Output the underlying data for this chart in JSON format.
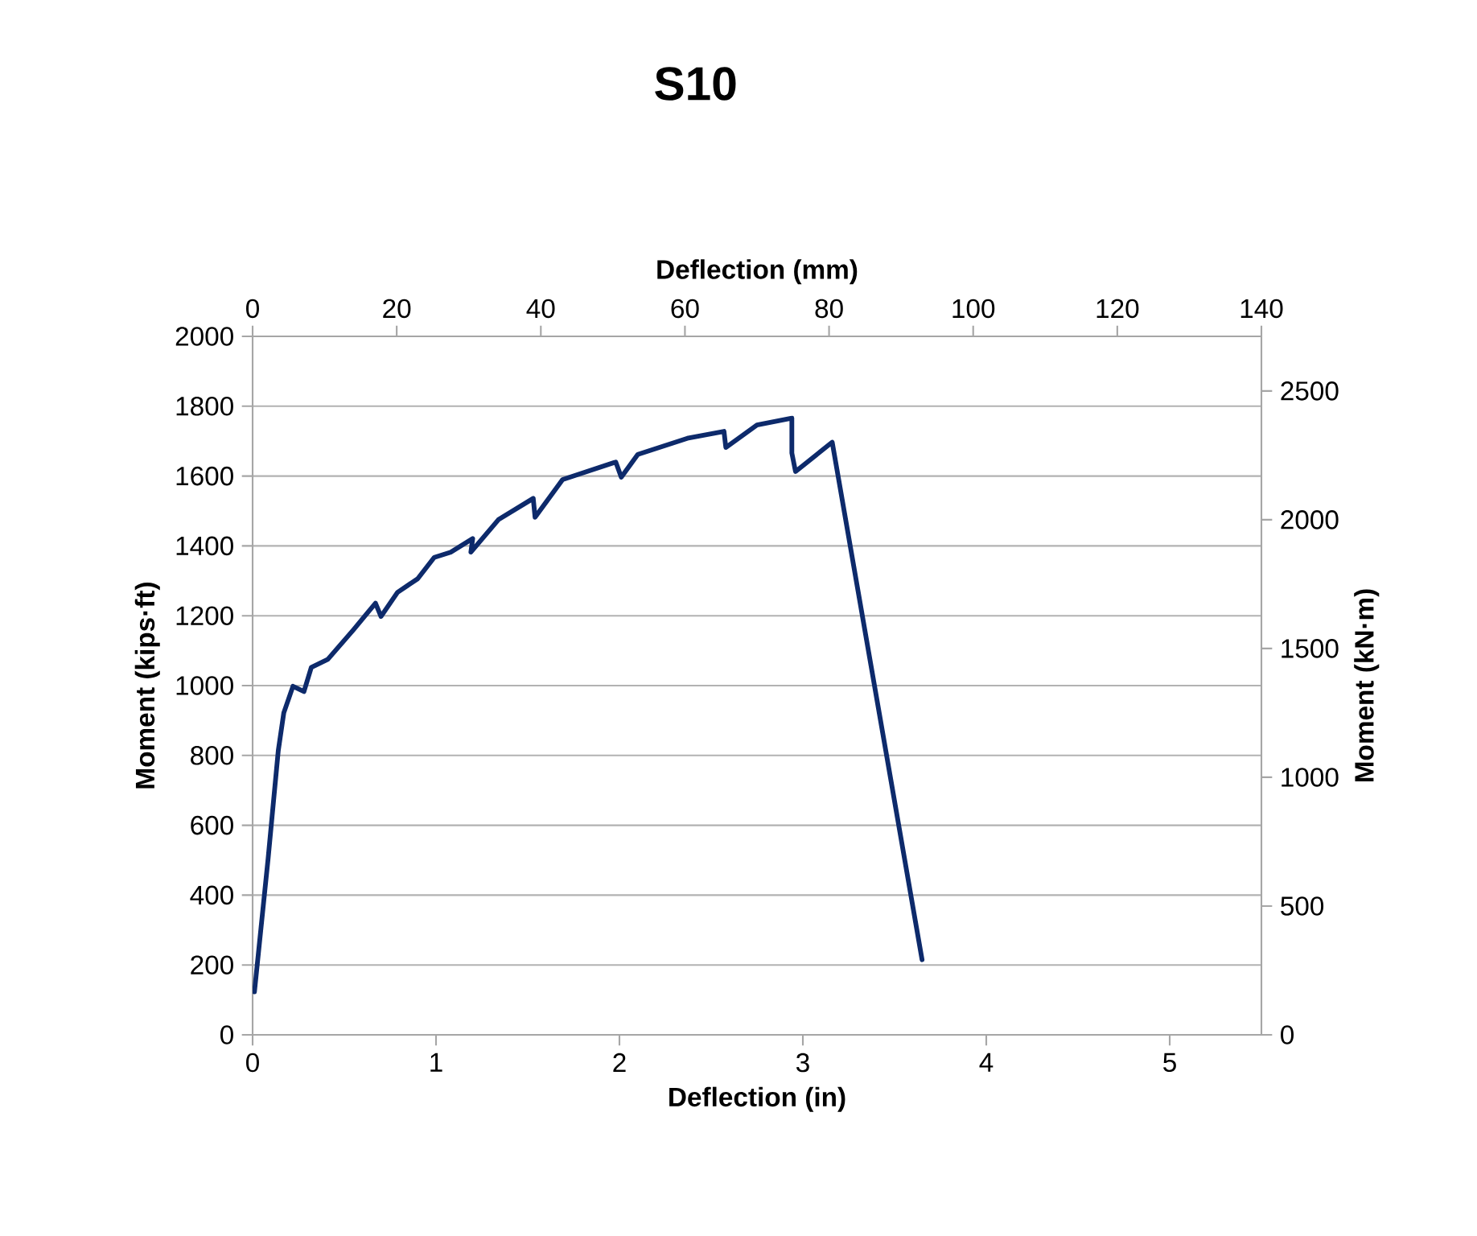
{
  "chart_data": {
    "type": "line",
    "title": "S10",
    "xlabel": "Deflection (in)",
    "ylabel": "Moment (kips·ft)",
    "x2label": "Deflection (mm)",
    "y2label": "Moment (kN·m)",
    "xlim": [
      0,
      5.5
    ],
    "xticks": [
      0,
      1,
      2,
      3,
      4,
      5
    ],
    "ylim": [
      0,
      2000
    ],
    "yticks": [
      0,
      200,
      400,
      600,
      800,
      1000,
      1200,
      1400,
      1600,
      1800,
      2000
    ],
    "x2lim": [
      0,
      140
    ],
    "x2ticks": [
      0,
      20,
      40,
      60,
      80,
      100,
      120,
      140
    ],
    "y2lim": [
      0,
      2712
    ],
    "y2ticks": [
      0,
      500,
      1000,
      1500,
      2000,
      2500
    ],
    "grid": "y",
    "series": [
      {
        "color": "#0d2a6b",
        "x": [
          0.01,
          0.085,
          0.14,
          0.17,
          0.22,
          0.28,
          0.32,
          0.41,
          0.55,
          0.67,
          0.7,
          0.79,
          0.9,
          0.99,
          1.08,
          1.2,
          1.19,
          1.34,
          1.53,
          1.54,
          1.69,
          1.98,
          2.01,
          2.1,
          2.37,
          2.57,
          2.58,
          2.75,
          2.94,
          2.94,
          2.96,
          3.16,
          3.65
        ],
        "values": [
          123,
          507,
          814,
          922,
          998,
          983,
          1052,
          1075,
          1160,
          1236,
          1198,
          1267,
          1306,
          1367,
          1382,
          1421,
          1382,
          1475,
          1536,
          1482,
          1590,
          1640,
          1597,
          1662,
          1708,
          1728,
          1682,
          1746,
          1766,
          1666,
          1613,
          1697,
          215
        ]
      }
    ]
  }
}
